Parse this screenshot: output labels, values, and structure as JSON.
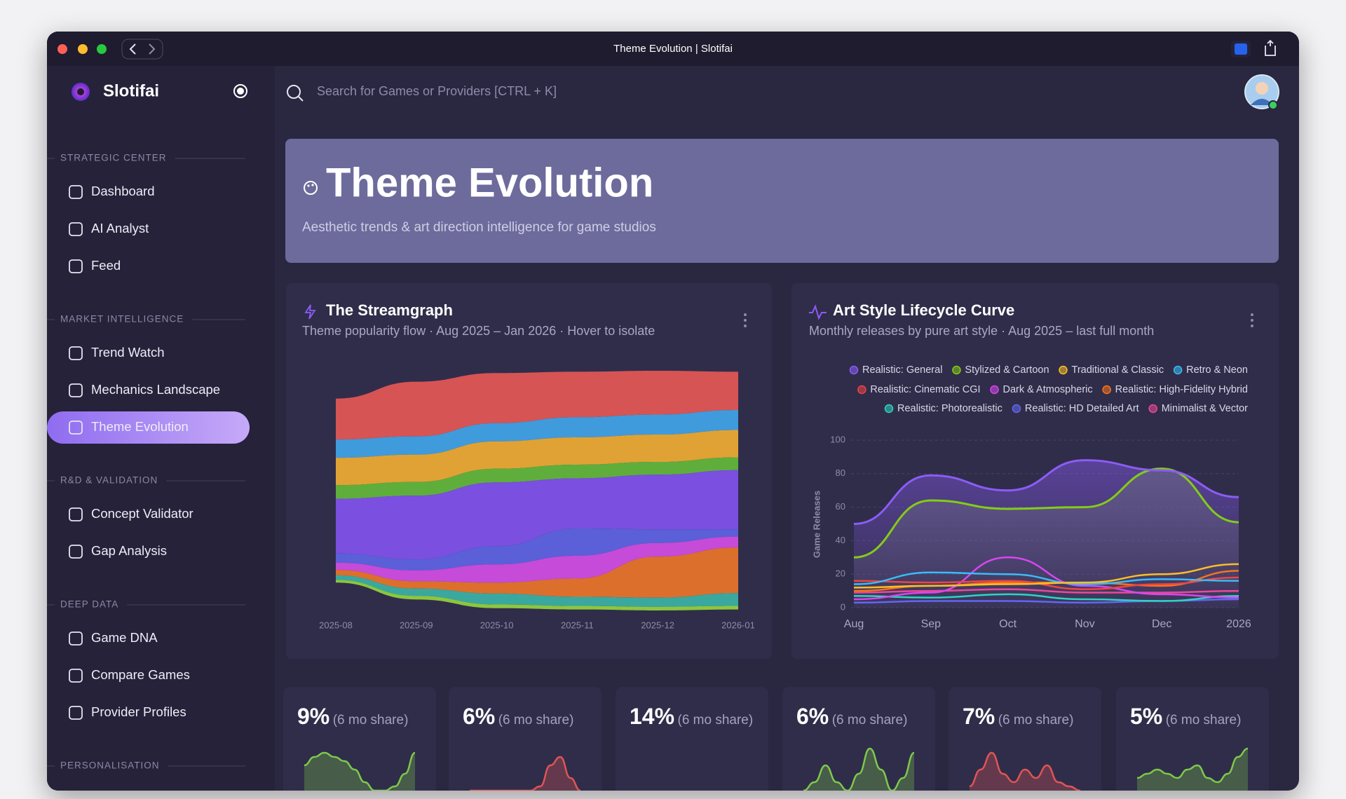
{
  "window": {
    "title": "Theme Evolution | Slotifai"
  },
  "sidebar": {
    "brand": "Slotifai",
    "sections": [
      {
        "title": "STRATEGIC CENTER",
        "items": [
          {
            "label": "Dashboard"
          },
          {
            "label": "AI Analyst"
          },
          {
            "label": "Feed"
          }
        ]
      },
      {
        "title": "MARKET INTELLIGENCE",
        "items": [
          {
            "label": "Trend Watch"
          },
          {
            "label": "Mechanics Landscape"
          },
          {
            "label": "Theme Evolution",
            "active": true
          }
        ]
      },
      {
        "title": "R&D & VALIDATION",
        "items": [
          {
            "label": "Concept Validator"
          },
          {
            "label": "Gap Analysis"
          }
        ]
      },
      {
        "title": "DEEP DATA",
        "items": [
          {
            "label": "Game DNA"
          },
          {
            "label": "Compare Games"
          },
          {
            "label": "Provider Profiles"
          }
        ]
      },
      {
        "title": "PERSONALISATION",
        "items": []
      }
    ]
  },
  "search": {
    "placeholder": "Search for Games or Providers [CTRL + K]"
  },
  "header": {
    "title": "Theme Evolution",
    "subtitle": "Aesthetic trends & art direction intelligence for game studios"
  },
  "streamgraph": {
    "type": "streamgraph",
    "title": "The Streamgraph",
    "subtitle": "Theme popularity flow · Aug 2025 – Jan 2026 · Hover to isolate",
    "x": [
      "2025-08",
      "2025-09",
      "2025-10",
      "2025-11",
      "2025-12",
      "2026-01"
    ],
    "series": [
      {
        "color": "#d65454",
        "values": [
          45,
          60,
          55,
          50,
          48,
          42
        ]
      },
      {
        "color": "#3f9bdc",
        "values": [
          20,
          20,
          20,
          22,
          22,
          22
        ]
      },
      {
        "color": "#e0a234",
        "values": [
          30,
          30,
          30,
          30,
          30,
          30
        ]
      },
      {
        "color": "#5fae3c",
        "values": [
          15,
          15,
          15,
          15,
          14,
          14
        ]
      },
      {
        "color": "#7b4fe0",
        "values": [
          60,
          70,
          70,
          55,
          60,
          65
        ]
      },
      {
        "color": "#5b5fd8",
        "values": [
          10,
          12,
          20,
          30,
          15,
          8
        ]
      },
      {
        "color": "#c54bd8",
        "values": [
          8,
          12,
          20,
          25,
          15,
          12
        ]
      },
      {
        "color": "#dd6f2c",
        "values": [
          6,
          8,
          12,
          20,
          45,
          50
        ]
      },
      {
        "color": "#3aa89e",
        "values": [
          5,
          8,
          12,
          10,
          10,
          14
        ]
      },
      {
        "color": "#8cc63f",
        "values": [
          3,
          4,
          4,
          4,
          4,
          4
        ]
      }
    ]
  },
  "lifecycle": {
    "type": "line",
    "title": "Art Style Lifecycle Curve",
    "subtitle": "Monthly releases by pure art style · Aug 2025 – last full month",
    "y_label": "Game Releases",
    "x": [
      "Aug",
      "Sep",
      "Oct",
      "Nov",
      "Dec",
      "2026"
    ],
    "ylim": [
      0,
      100
    ],
    "yticks": [
      0,
      20,
      40,
      60,
      80,
      100
    ],
    "grid": true,
    "series": [
      {
        "name": "Realistic: General",
        "color": "#8b5cf6",
        "values": [
          50,
          79,
          70,
          88,
          82,
          66
        ]
      },
      {
        "name": "Stylized & Cartoon",
        "color": "#84cc16",
        "values": [
          30,
          64,
          59,
          60,
          83,
          51
        ]
      },
      {
        "name": "Traditional & Classic",
        "color": "#fbbf24",
        "values": [
          12,
          13,
          14,
          15,
          20,
          26
        ]
      },
      {
        "name": "Retro & Neon",
        "color": "#38bdf8",
        "values": [
          14,
          21,
          20,
          14,
          17,
          16
        ]
      },
      {
        "name": "Realistic: Cinematic CGI",
        "color": "#ef4444",
        "values": [
          16,
          15,
          16,
          11,
          14,
          18
        ]
      },
      {
        "name": "Dark & Atmospheric",
        "color": "#d946ef",
        "values": [
          5,
          9,
          30,
          13,
          8,
          6
        ]
      },
      {
        "name": "Realistic: High-Fidelity Hybrid",
        "color": "#f97316",
        "values": [
          10,
          13,
          15,
          15,
          13,
          22
        ]
      },
      {
        "name": "Realistic: Photorealistic",
        "color": "#2dd4bf",
        "values": [
          7,
          6,
          8,
          5,
          4,
          7
        ]
      },
      {
        "name": "Realistic: HD Detailed Art",
        "color": "#6366f1",
        "values": [
          3,
          4,
          4,
          3,
          4,
          5
        ]
      },
      {
        "name": "Minimalist & Vector",
        "color": "#ec4899",
        "values": [
          9,
          10,
          11,
          9,
          9,
          10
        ]
      }
    ]
  },
  "kpis": [
    {
      "value": "9%",
      "note": "(6 mo share)",
      "spark": {
        "color": "#7ec94a",
        "values": [
          6,
          8,
          9,
          8,
          7,
          5,
          2,
          0,
          0,
          1,
          4,
          9
        ]
      }
    },
    {
      "value": "6%",
      "note": "(6 mo share)",
      "spark": {
        "color": "#e05555",
        "values": [
          0,
          0,
          0,
          0,
          0,
          0,
          0,
          1,
          6,
          8,
          3,
          0
        ]
      }
    },
    {
      "value": "14%",
      "note": "(6 mo share)"
    },
    {
      "value": "6%",
      "note": "(6 mo share)",
      "spark": {
        "color": "#7ec94a",
        "values": [
          0,
          2,
          6,
          2,
          0,
          4,
          10,
          5,
          0,
          3,
          9
        ]
      }
    },
    {
      "value": "7%",
      "note": "(6 mo share)",
      "spark": {
        "color": "#e05555",
        "values": [
          1,
          5,
          9,
          4,
          2,
          5,
          3,
          6,
          2,
          1,
          0
        ]
      }
    },
    {
      "value": "5%",
      "note": "(6 mo share)",
      "spark": {
        "color": "#7ec94a",
        "values": [
          3,
          4,
          5,
          4,
          3,
          5,
          6,
          3,
          2,
          4,
          8,
          10
        ]
      }
    }
  ]
}
